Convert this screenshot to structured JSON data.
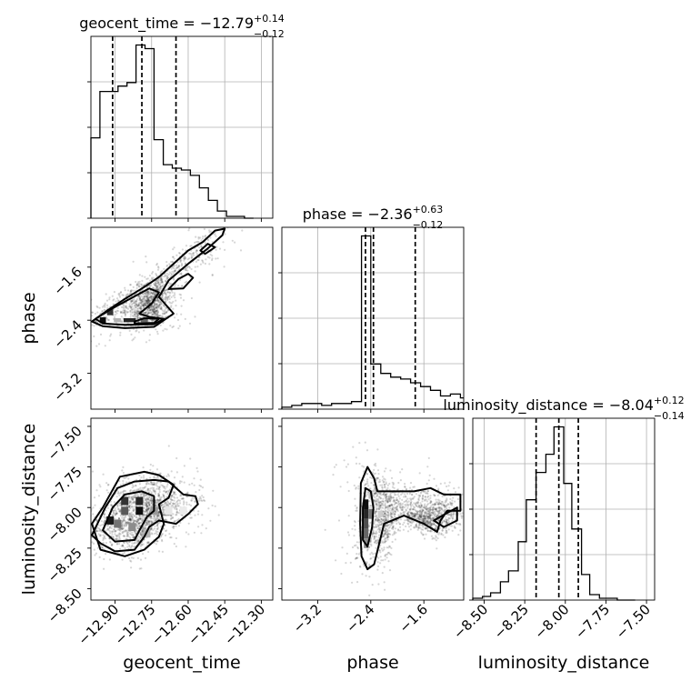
{
  "chart_data": {
    "type": "corner",
    "parameters": [
      "geocent_time",
      "phase",
      "luminosity_distance"
    ],
    "grid": true,
    "marginals": [
      {
        "param": "geocent_time",
        "title": {
          "prefix": "geocent_time = ",
          "value": "−12.79",
          "plus": "+0.14",
          "minus": "−0.12"
        },
        "range": [
          -12.999,
          -12.253
        ],
        "quantiles": [
          -12.91,
          -12.79,
          -12.65
        ],
        "bins": {
          "edges": [
            -12.999,
            -12.962,
            -12.925,
            -12.888,
            -12.851,
            -12.814,
            -12.777,
            -12.74,
            -12.702,
            -12.665,
            -12.628,
            -12.591,
            -12.554,
            -12.517,
            -12.48,
            -12.443,
            -12.406,
            -12.369,
            -12.332
          ],
          "counts": [
            0.45,
            0.71,
            0.71,
            0.74,
            0.76,
            0.97,
            0.95,
            0.44,
            0.3,
            0.28,
            0.27,
            0.24,
            0.17,
            0.1,
            0.04,
            0.01,
            0.01,
            0.0
          ]
        }
      },
      {
        "param": "phase",
        "title": {
          "prefix": "phase = ",
          "value": "−2.36",
          "plus": "+0.63",
          "minus": "−0.12"
        },
        "range": [
          -3.74,
          -1.0
        ],
        "quantiles": [
          -2.48,
          -2.36,
          -1.73
        ],
        "bins": {
          "edges": [
            -3.74,
            -3.59,
            -3.44,
            -3.29,
            -3.14,
            -2.99,
            -2.84,
            -2.69,
            -2.54,
            -2.4,
            -2.25,
            -2.1,
            -1.95,
            -1.8,
            -1.65,
            -1.5,
            -1.35,
            -1.2,
            -1.05,
            -1.0
          ],
          "counts": [
            0.01,
            0.02,
            0.03,
            0.03,
            0.02,
            0.03,
            0.03,
            0.04,
            0.92,
            0.24,
            0.19,
            0.17,
            0.16,
            0.14,
            0.12,
            0.1,
            0.07,
            0.08,
            0.06
          ]
        }
      },
      {
        "param": "luminosity_distance",
        "title": {
          "prefix": "luminosity_distance = ",
          "value": "−8.04",
          "plus": "+0.12",
          "minus": "−0.14"
        },
        "range": [
          -8.57,
          -7.45
        ],
        "quantiles": [
          -8.18,
          -8.04,
          -7.92
        ],
        "bins": {
          "edges": [
            -8.57,
            -8.51,
            -8.46,
            -8.4,
            -8.35,
            -8.29,
            -8.24,
            -8.18,
            -8.12,
            -8.07,
            -8.01,
            -7.96,
            -7.9,
            -7.85,
            -7.79,
            -7.74,
            -7.68,
            -7.63,
            -7.57
          ],
          "counts": [
            0.01,
            0.02,
            0.04,
            0.1,
            0.16,
            0.32,
            0.55,
            0.7,
            0.8,
            0.95,
            0.64,
            0.39,
            0.14,
            0.03,
            0.01,
            0.01,
            0.0,
            0.0
          ]
        }
      }
    ],
    "joints": [
      {
        "x_param": "geocent_time",
        "y_param": "phase",
        "x_range": [
          -12.999,
          -12.253
        ],
        "y_range": [
          -3.74,
          -1.0
        ],
        "density_cells": [
          {
            "x": -12.95,
            "y": -2.4,
            "w": 0.025,
            "h": 0.09,
            "shade": 0.95
          },
          {
            "x": -12.92,
            "y": -2.28,
            "w": 0.025,
            "h": 0.09,
            "shade": 0.8
          },
          {
            "x": -12.84,
            "y": -2.4,
            "w": 0.05,
            "h": 0.06,
            "shade": 0.85
          },
          {
            "x": -12.78,
            "y": -2.4,
            "w": 0.03,
            "h": 0.06,
            "shade": 0.6
          },
          {
            "x": -12.89,
            "y": -2.4,
            "w": 0.03,
            "h": 0.06,
            "shade": 0.3
          }
        ],
        "contours": [
          [
            [
              -12.995,
              -2.42
            ],
            [
              -12.93,
              -2.25
            ],
            [
              -12.86,
              -2.08
            ],
            [
              -12.78,
              -1.9
            ],
            [
              -12.72,
              -1.75
            ],
            [
              -12.66,
              -1.55
            ],
            [
              -12.6,
              -1.35
            ],
            [
              -12.54,
              -1.22
            ],
            [
              -12.49,
              -1.05
            ],
            [
              -12.45,
              -1.02
            ],
            [
              -12.46,
              -1.12
            ],
            [
              -12.52,
              -1.32
            ],
            [
              -12.6,
              -1.55
            ],
            [
              -12.68,
              -1.8
            ],
            [
              -12.72,
              -2.05
            ],
            [
              -12.66,
              -2.3
            ],
            [
              -12.74,
              -2.5
            ],
            [
              -12.86,
              -2.52
            ],
            [
              -12.95,
              -2.49
            ],
            [
              -12.995,
              -2.42
            ]
          ],
          [
            [
              -12.98,
              -2.38
            ],
            [
              -12.92,
              -2.24
            ],
            [
              -12.86,
              -2.12
            ],
            [
              -12.8,
              -2.0
            ],
            [
              -12.76,
              -1.92
            ],
            [
              -12.72,
              -1.98
            ],
            [
              -12.75,
              -2.15
            ],
            [
              -12.8,
              -2.3
            ],
            [
              -12.76,
              -2.35
            ],
            [
              -12.7,
              -2.38
            ],
            [
              -12.74,
              -2.46
            ],
            [
              -12.86,
              -2.47
            ],
            [
              -12.95,
              -2.45
            ],
            [
              -12.98,
              -2.38
            ]
          ],
          [
            [
              -12.82,
              -2.42
            ],
            [
              -12.78,
              -2.37
            ],
            [
              -12.72,
              -2.38
            ],
            [
              -12.74,
              -2.44
            ],
            [
              -12.82,
              -2.45
            ],
            [
              -12.82,
              -2.42
            ]
          ],
          [
            [
              -12.68,
              -1.93
            ],
            [
              -12.64,
              -1.78
            ],
            [
              -12.6,
              -1.7
            ],
            [
              -12.58,
              -1.76
            ],
            [
              -12.62,
              -1.92
            ],
            [
              -12.68,
              -1.93
            ]
          ],
          [
            [
              -12.55,
              -1.35
            ],
            [
              -12.52,
              -1.25
            ],
            [
              -12.49,
              -1.3
            ],
            [
              -12.53,
              -1.4
            ],
            [
              -12.55,
              -1.35
            ]
          ]
        ],
        "scatter": {
          "count": 1300,
          "seed": 11,
          "alpha": 0.16
        }
      },
      {
        "x_param": "geocent_time",
        "y_param": "luminosity_distance",
        "x_range": [
          -12.999,
          -12.253
        ],
        "y_range": [
          -8.57,
          -7.45
        ],
        "density_cells": [
          {
            "x": -12.92,
            "y": -8.08,
            "w": 0.03,
            "h": 0.05,
            "shade": 0.9
          },
          {
            "x": -12.86,
            "y": -7.96,
            "w": 0.03,
            "h": 0.05,
            "shade": 0.8
          },
          {
            "x": -12.8,
            "y": -7.96,
            "w": 0.03,
            "h": 0.05,
            "shade": 0.85
          },
          {
            "x": -12.8,
            "y": -8.02,
            "w": 0.03,
            "h": 0.05,
            "shade": 0.95
          },
          {
            "x": -12.86,
            "y": -8.02,
            "w": 0.03,
            "h": 0.05,
            "shade": 0.65
          },
          {
            "x": -12.89,
            "y": -8.1,
            "w": 0.03,
            "h": 0.05,
            "shade": 0.55
          },
          {
            "x": -12.74,
            "y": -8.02,
            "w": 0.03,
            "h": 0.05,
            "shade": 0.4
          },
          {
            "x": -12.83,
            "y": -8.12,
            "w": 0.03,
            "h": 0.05,
            "shade": 0.45
          },
          {
            "x": -12.77,
            "y": -8.16,
            "w": 0.03,
            "h": 0.05,
            "shade": 0.3
          },
          {
            "x": -12.68,
            "y": -8.02,
            "w": 0.03,
            "h": 0.05,
            "shade": 0.1
          },
          {
            "x": -12.62,
            "y": -8.02,
            "w": 0.03,
            "h": 0.05,
            "shade": 0.08
          }
        ],
        "contours": [
          [
            [
              -12.995,
              -8.17
            ],
            [
              -12.94,
              -8.0
            ],
            [
              -12.89,
              -7.88
            ],
            [
              -12.82,
              -7.84
            ],
            [
              -12.74,
              -7.83
            ],
            [
              -12.68,
              -7.84
            ],
            [
              -12.62,
              -7.92
            ],
            [
              -12.57,
              -7.93
            ],
            [
              -12.56,
              -7.98
            ],
            [
              -12.6,
              -8.04
            ],
            [
              -12.65,
              -8.1
            ],
            [
              -12.72,
              -8.08
            ],
            [
              -12.76,
              -8.12
            ],
            [
              -12.78,
              -8.18
            ],
            [
              -12.82,
              -8.26
            ],
            [
              -12.9,
              -8.27
            ],
            [
              -12.96,
              -8.22
            ],
            [
              -12.995,
              -8.17
            ]
          ],
          [
            [
              -12.95,
              -8.14
            ],
            [
              -12.91,
              -8.0
            ],
            [
              -12.86,
              -7.92
            ],
            [
              -12.79,
              -7.9
            ],
            [
              -12.74,
              -7.93
            ],
            [
              -12.74,
              -8.02
            ],
            [
              -12.77,
              -8.06
            ],
            [
              -12.8,
              -8.14
            ],
            [
              -12.82,
              -8.2
            ],
            [
              -12.9,
              -8.21
            ],
            [
              -12.95,
              -8.14
            ]
          ],
          [
            [
              -12.995,
              -8.1
            ],
            [
              -12.95,
              -8.0
            ],
            [
              -12.88,
              -7.81
            ],
            [
              -12.78,
              -7.78
            ],
            [
              -12.72,
              -7.8
            ],
            [
              -12.66,
              -7.86
            ],
            [
              -12.68,
              -7.94
            ],
            [
              -12.72,
              -7.98
            ],
            [
              -12.7,
              -8.1
            ],
            [
              -12.72,
              -8.18
            ],
            [
              -12.78,
              -8.26
            ],
            [
              -12.86,
              -8.3
            ],
            [
              -12.96,
              -8.26
            ],
            [
              -12.995,
              -8.1
            ]
          ]
        ],
        "scatter": {
          "count": 1500,
          "seed": 23,
          "alpha": 0.16
        }
      },
      {
        "x_param": "phase",
        "y_param": "luminosity_distance",
        "x_range": [
          -3.74,
          -1.0
        ],
        "y_range": [
          -8.57,
          -7.45
        ],
        "density_cells": [
          {
            "x": -2.47,
            "y": -7.98,
            "w": 0.07,
            "h": 0.06,
            "shade": 0.95
          },
          {
            "x": -2.47,
            "y": -8.04,
            "w": 0.07,
            "h": 0.06,
            "shade": 0.85
          },
          {
            "x": -2.47,
            "y": -8.1,
            "w": 0.07,
            "h": 0.06,
            "shade": 0.7
          },
          {
            "x": -2.4,
            "y": -8.04,
            "w": 0.07,
            "h": 0.06,
            "shade": 0.55
          },
          {
            "x": -2.47,
            "y": -8.16,
            "w": 0.07,
            "h": 0.06,
            "shade": 0.6
          },
          {
            "x": -2.47,
            "y": -8.22,
            "w": 0.07,
            "h": 0.06,
            "shade": 0.45
          },
          {
            "x": -2.26,
            "y": -8.04,
            "w": 0.07,
            "h": 0.04,
            "shade": 0.2
          },
          {
            "x": -2.4,
            "y": -7.92,
            "w": 0.07,
            "h": 0.05,
            "shade": 0.25
          }
        ],
        "contours": [
          [
            [
              -2.54,
              -8.3
            ],
            [
              -2.56,
              -8.1
            ],
            [
              -2.55,
              -7.85
            ],
            [
              -2.45,
              -7.75
            ],
            [
              -2.35,
              -7.82
            ],
            [
              -2.3,
              -7.9
            ],
            [
              -2.1,
              -7.9
            ],
            [
              -1.9,
              -7.9
            ],
            [
              -1.75,
              -7.9
            ],
            [
              -1.5,
              -7.88
            ],
            [
              -1.3,
              -7.92
            ],
            [
              -1.05,
              -7.92
            ],
            [
              -1.05,
              -8.02
            ],
            [
              -1.25,
              -8.02
            ],
            [
              -1.35,
              -8.08
            ],
            [
              -1.4,
              -8.15
            ],
            [
              -1.6,
              -8.1
            ],
            [
              -1.9,
              -8.05
            ],
            [
              -2.2,
              -8.1
            ],
            [
              -2.35,
              -8.35
            ],
            [
              -2.45,
              -8.38
            ],
            [
              -2.54,
              -8.3
            ]
          ],
          [
            [
              -2.52,
              -8.2
            ],
            [
              -2.52,
              -8.0
            ],
            [
              -2.48,
              -7.88
            ],
            [
              -2.4,
              -7.9
            ],
            [
              -2.36,
              -8.0
            ],
            [
              -2.38,
              -8.12
            ],
            [
              -2.45,
              -8.24
            ],
            [
              -2.52,
              -8.2
            ]
          ],
          [
            [
              -1.45,
              -8.08
            ],
            [
              -1.28,
              -8.04
            ],
            [
              -1.1,
              -8.0
            ],
            [
              -1.1,
              -8.08
            ],
            [
              -1.3,
              -8.12
            ],
            [
              -1.45,
              -8.08
            ]
          ]
        ],
        "scatter": {
          "count": 1500,
          "seed": 37,
          "alpha": 0.16
        }
      }
    ],
    "ticks": {
      "geocent_time": [
        -12.9,
        -12.75,
        -12.6,
        -12.45,
        -12.3
      ],
      "phase": [
        -3.2,
        -2.4,
        -1.6
      ],
      "luminosity_distance": [
        -8.5,
        -8.25,
        -8.0,
        -7.75,
        -7.5
      ]
    },
    "tick_labels": {
      "geocent_time": [
        "−12.90",
        "−12.75",
        "−12.60",
        "−12.45",
        "−12.30"
      ],
      "phase": [
        "−3.2",
        "−2.4",
        "−1.6"
      ],
      "luminosity_distance": [
        "−8.50",
        "−8.25",
        "−8.00",
        "−7.75",
        "−7.50"
      ]
    },
    "axis_labels": {
      "x": [
        "geocent_time",
        "phase",
        "luminosity_distance"
      ],
      "y": [
        "phase",
        "luminosity_distance"
      ]
    }
  }
}
